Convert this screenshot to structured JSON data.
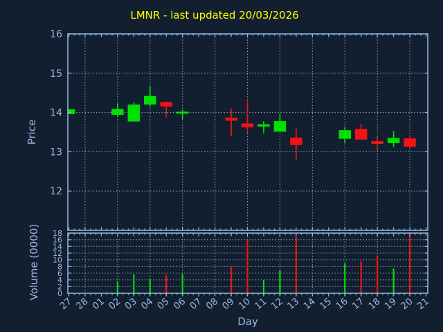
{
  "colors": {
    "background": "#121F31",
    "axis": "#8FB3D9",
    "tick_text": "#9DBBDE",
    "grid": "#A9B4BF",
    "title": "#FFFF00",
    "up": "#00E100",
    "down": "#F01414"
  },
  "chart_data": {
    "type": "candlestick",
    "title": "LMNR - last updated 20/03/2026",
    "ticker": "LMNR",
    "last_updated": "20/03/2026",
    "xlabel": "Day",
    "legend": "none",
    "grid": "dotted, vertical every 2nd day, horizontal at each tick",
    "categories": [
      "27",
      "28",
      "01",
      "02",
      "03",
      "04",
      "05",
      "06",
      "07",
      "08",
      "09",
      "10",
      "11",
      "12",
      "13",
      "14",
      "15",
      "16",
      "17",
      "18",
      "19",
      "20",
      "21"
    ],
    "price_axis": {
      "label": "Price",
      "min": 11,
      "max": 16,
      "ticks": [
        16,
        15,
        14,
        13,
        12
      ]
    },
    "volume_axis": {
      "label": "Volume (0000)",
      "min": 0,
      "max": 18,
      "ticks": [
        18,
        16,
        14,
        12,
        10,
        8,
        6,
        4,
        2,
        0
      ]
    },
    "no_data_days": [
      "28",
      "01",
      "07",
      "08",
      "14",
      "15",
      "21"
    ],
    "candles": [
      {
        "day": "27",
        "open": 13.96,
        "high": 14.08,
        "low": 13.96,
        "close": 14.08,
        "volume": 0
      },
      {
        "day": "02",
        "open": 13.94,
        "high": 14.23,
        "low": 13.9,
        "close": 14.09,
        "volume": 3.5
      },
      {
        "day": "03",
        "open": 13.77,
        "high": 14.26,
        "low": 13.77,
        "close": 14.2,
        "volume": 5.7
      },
      {
        "day": "04",
        "open": 14.2,
        "high": 14.66,
        "low": 14.15,
        "close": 14.42,
        "volume": 4.3
      },
      {
        "day": "05",
        "open": 14.26,
        "high": 14.28,
        "low": 13.87,
        "close": 14.15,
        "volume": 5.5
      },
      {
        "day": "06",
        "open": 13.97,
        "high": 14.07,
        "low": 13.83,
        "close": 14.02,
        "volume": 5.7
      },
      {
        "day": "09",
        "open": 13.87,
        "high": 14.1,
        "low": 13.39,
        "close": 13.79,
        "volume": 8.0
      },
      {
        "day": "10",
        "open": 13.72,
        "high": 14.3,
        "low": 13.48,
        "close": 13.62,
        "volume": 16.0
      },
      {
        "day": "11",
        "open": 13.64,
        "high": 13.78,
        "low": 13.47,
        "close": 13.7,
        "volume": 4.0
      },
      {
        "day": "12",
        "open": 13.51,
        "high": 13.97,
        "low": 13.51,
        "close": 13.78,
        "volume": 7.0
      },
      {
        "day": "13",
        "open": 13.36,
        "high": 13.59,
        "low": 12.77,
        "close": 13.17,
        "volume": 16.8
      },
      {
        "day": "16",
        "open": 13.33,
        "high": 13.63,
        "low": 13.21,
        "close": 13.55,
        "volume": 9.0
      },
      {
        "day": "17",
        "open": 13.58,
        "high": 13.71,
        "low": 13.31,
        "close": 13.31,
        "volume": 9.5
      },
      {
        "day": "18",
        "open": 13.27,
        "high": 13.38,
        "low": 13.02,
        "close": 13.2,
        "volume": 11.0
      },
      {
        "day": "19",
        "open": 13.22,
        "high": 13.53,
        "low": 13.12,
        "close": 13.35,
        "volume": 7.4
      },
      {
        "day": "20",
        "open": 13.34,
        "high": 13.43,
        "low": 13.07,
        "close": 13.13,
        "volume": 17.9
      }
    ]
  }
}
